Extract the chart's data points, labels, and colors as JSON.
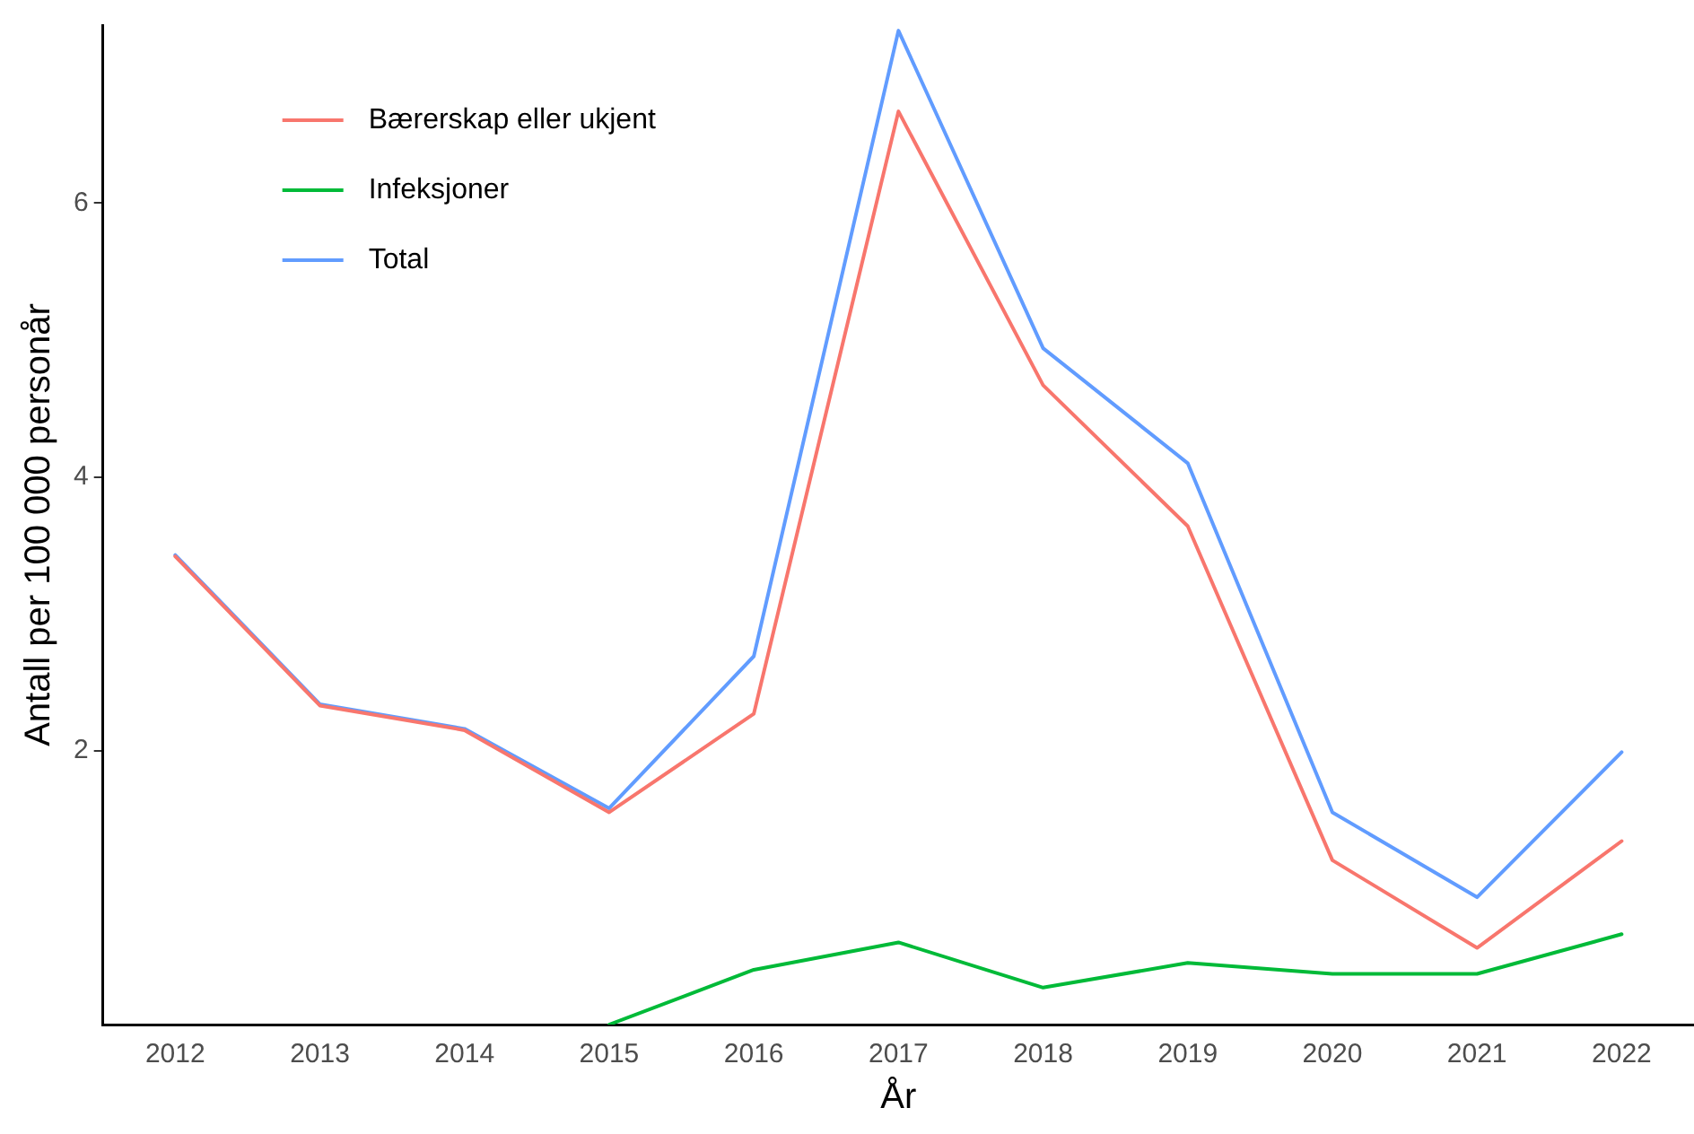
{
  "chart_data": {
    "type": "line",
    "xlabel": "År",
    "ylabel": "Antall per 100 000 personår",
    "categories": [
      "2012",
      "2013",
      "2014",
      "2015",
      "2016",
      "2017",
      "2018",
      "2019",
      "2020",
      "2021",
      "2022"
    ],
    "series": [
      {
        "name": "Bærerskap eller ukjent",
        "color": "#f8766d",
        "values": [
          3.42,
          2.33,
          2.15,
          1.55,
          2.27,
          6.67,
          4.67,
          3.64,
          1.2,
          0.56,
          1.34
        ]
      },
      {
        "name": "Infeksjoner",
        "color": "#00ba38",
        "values": [
          null,
          null,
          null,
          0,
          0.4,
          0.6,
          0.27,
          0.45,
          0.37,
          0.37,
          0.66
        ]
      },
      {
        "name": "Total",
        "color": "#619cff",
        "values": [
          3.43,
          2.34,
          2.16,
          1.58,
          2.69,
          7.26,
          4.94,
          4.1,
          1.55,
          0.93,
          1.99
        ]
      }
    ],
    "ylim": [
      0,
      7.3
    ],
    "yticks": [
      {
        "value": 2,
        "label": "2"
      },
      {
        "value": 4,
        "label": "4"
      },
      {
        "value": 6,
        "label": "6"
      }
    ],
    "grid": false,
    "legend": "top left",
    "marker": "none",
    "line_style": "solid"
  }
}
